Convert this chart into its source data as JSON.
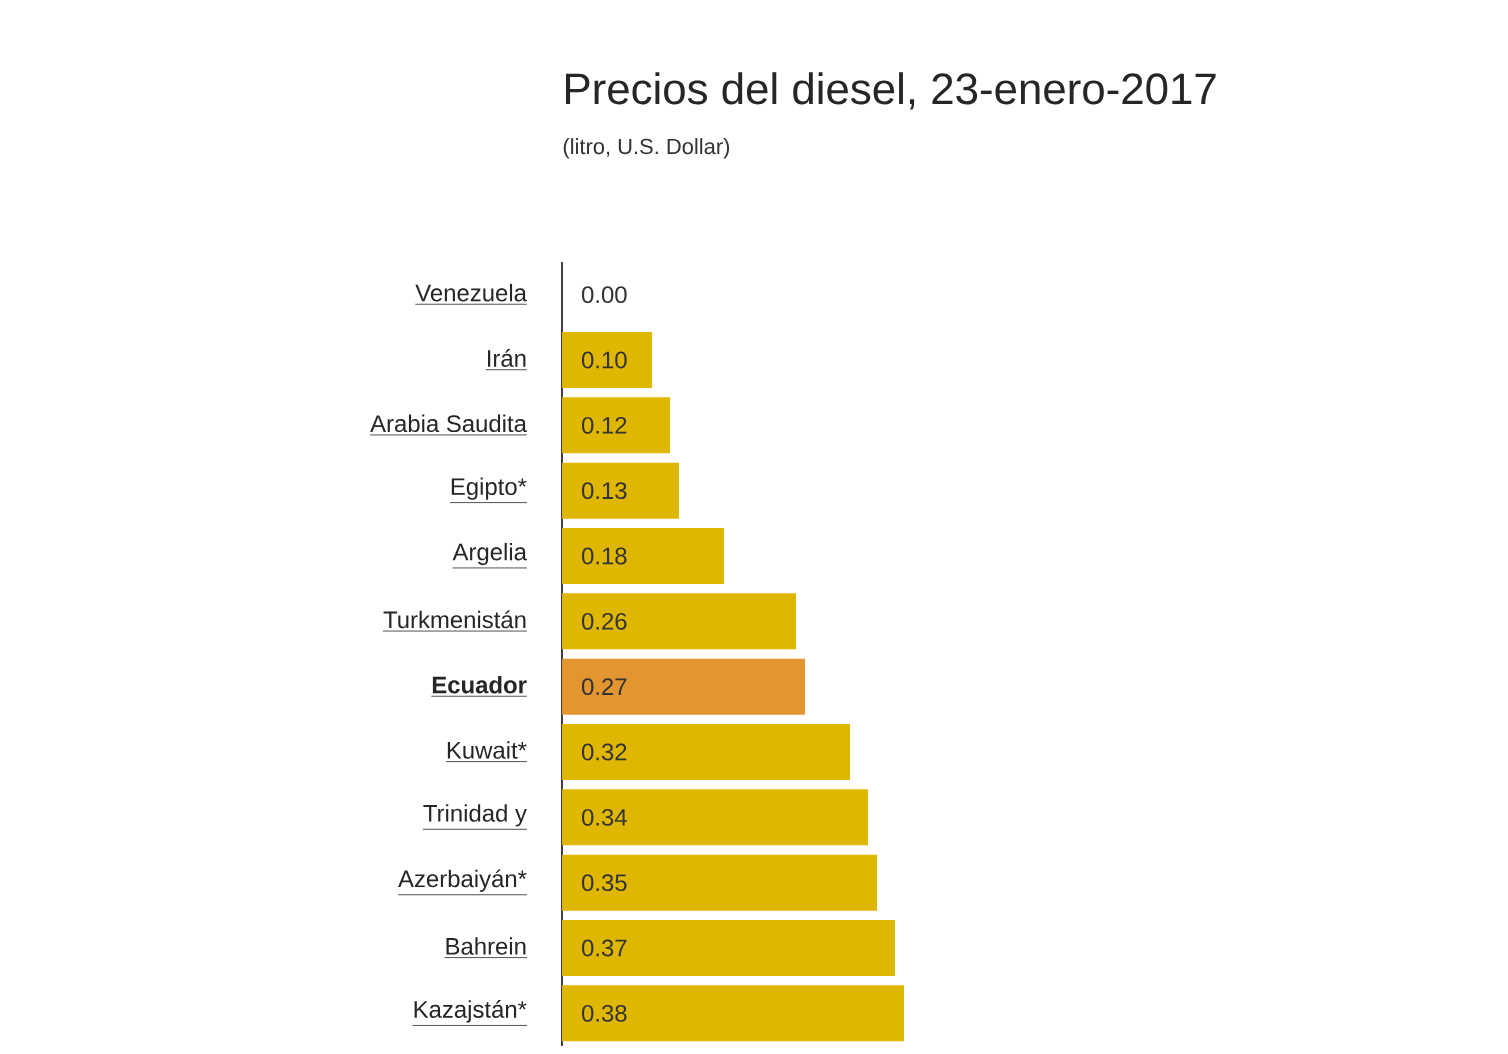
{
  "chart_data": {
    "type": "bar",
    "orientation": "horizontal",
    "title": "Precios del diesel, 23-enero-2017",
    "subtitle": "(litro, U.S. Dollar)",
    "categories": [
      "Venezuela",
      "Irán",
      "Arabia Saudita",
      "Egipto*",
      "Argelia",
      "Turkmenistán",
      "**Ecuador**",
      "Kuwait*",
      "Trinidad y",
      "Azerbaiyán*",
      "Bahrein",
      "Kazajstán*"
    ],
    "values": [
      0.0,
      0.1,
      0.12,
      0.13,
      0.18,
      0.26,
      0.27,
      0.32,
      0.34,
      0.35,
      0.37,
      0.38
    ],
    "colors": [
      "#dfb700",
      "#dfb700",
      "#dfb700",
      "#dfb700",
      "#dfb700",
      "#dfb700",
      "#e3952f",
      "#dfb700",
      "#dfb700",
      "#dfb700",
      "#dfb700",
      "#dfb700"
    ],
    "value_labels": [
      "0.00",
      "0.10",
      "0.12",
      "0.13",
      "0.18",
      "0.26",
      "0.27",
      "0.32",
      "0.34",
      "0.35",
      "0.37",
      "0.38"
    ]
  }
}
